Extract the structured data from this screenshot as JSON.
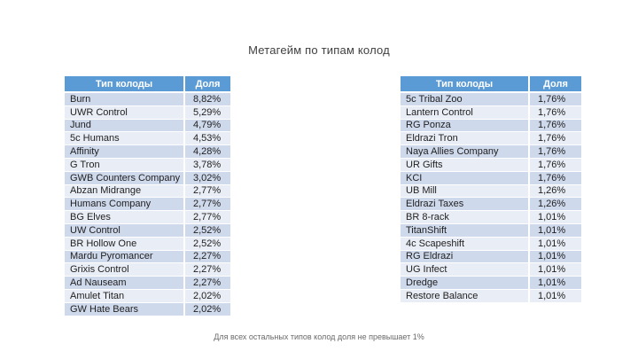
{
  "slide": {
    "title": "Метагейм по типам колод",
    "footnote": "Для всех остальных типов колод доля не превышает 1%",
    "colors": {
      "header_bg": "#5B9BD5",
      "header_text": "#FFFFFF",
      "row_odd_bg": "#CFD9EC",
      "row_even_bg": "#E9EDF5",
      "body_text": "#1F1F1F",
      "title_text": "#404040",
      "footnote_text": "#6A6A6A"
    },
    "tables": [
      {
        "name": "left-deck-table",
        "headers": [
          "Тип колоды",
          "Доля"
        ],
        "rows": [
          [
            "Burn",
            "8,82%"
          ],
          [
            "UWR Control",
            "5,29%"
          ],
          [
            "Jund",
            "4,79%"
          ],
          [
            "5c Humans",
            "4,53%"
          ],
          [
            "Affinity",
            "4,28%"
          ],
          [
            "G Tron",
            "3,78%"
          ],
          [
            "GWB Counters Company",
            "3,02%"
          ],
          [
            "Abzan Midrange",
            "2,77%"
          ],
          [
            "Humans Company",
            "2,77%"
          ],
          [
            "BG Elves",
            "2,77%"
          ],
          [
            "UW Control",
            "2,52%"
          ],
          [
            "BR Hollow One",
            "2,52%"
          ],
          [
            "Mardu Pyromancer",
            "2,27%"
          ],
          [
            "Grixis Control",
            "2,27%"
          ],
          [
            "Ad Nauseam",
            "2,27%"
          ],
          [
            "Amulet Titan",
            "2,02%"
          ],
          [
            "GW Hate Bears",
            "2,02%"
          ]
        ]
      },
      {
        "name": "right-deck-table",
        "headers": [
          "Тип колоды",
          "Доля"
        ],
        "rows": [
          [
            "5c Tribal Zoo",
            "1,76%"
          ],
          [
            "Lantern Control",
            "1,76%"
          ],
          [
            "RG Ponza",
            "1,76%"
          ],
          [
            "Eldrazi Tron",
            "1,76%"
          ],
          [
            "Naya Allies Company",
            "1,76%"
          ],
          [
            "UR Gifts",
            "1,76%"
          ],
          [
            "KCI",
            "1,76%"
          ],
          [
            "UB Mill",
            "1,26%"
          ],
          [
            "Eldrazi Taxes",
            "1,26%"
          ],
          [
            "BR 8-rack",
            "1,01%"
          ],
          [
            "TitanShift",
            "1,01%"
          ],
          [
            "4c Scapeshift",
            "1,01%"
          ],
          [
            "RG Eldrazi",
            "1,01%"
          ],
          [
            "UG Infect",
            "1,01%"
          ],
          [
            "Dredge",
            "1,01%"
          ],
          [
            "Restore Balance",
            "1,01%"
          ]
        ]
      }
    ]
  },
  "chart_data": {
    "type": "table",
    "title": "Метагейм по типам колод",
    "columns": [
      "Тип колоды",
      "Доля"
    ],
    "note": "Для всех остальных типов колод доля не превышает 1%"
  }
}
